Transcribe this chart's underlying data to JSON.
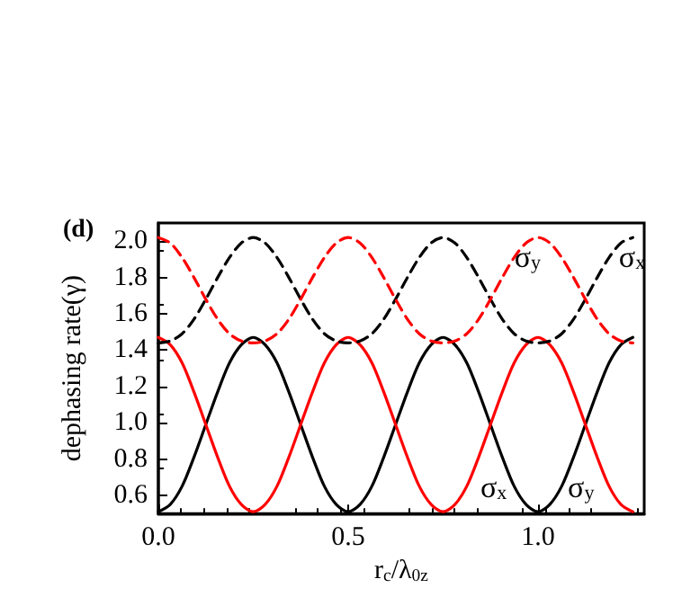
{
  "chart_data": {
    "type": "line",
    "title": "(d)",
    "xlabel": "r$_{c}$/λ$_{0z}$",
    "ylabel": "dephasing rate(γ)",
    "x": [
      0,
      0.03125,
      0.0625,
      0.09375,
      0.125,
      0.15625,
      0.1875,
      0.21875,
      0.25,
      0.28125,
      0.3125,
      0.34375,
      0.375,
      0.40625,
      0.4375,
      0.46875,
      0.5,
      0.53125,
      0.5625,
      0.59375,
      0.625,
      0.65625,
      0.6875,
      0.71875,
      0.75,
      0.78125,
      0.8125,
      0.84375,
      0.875,
      0.90625,
      0.9375,
      0.96875,
      1,
      1.03125,
      1.0625,
      1.09375,
      1.125,
      1.15625,
      1.1875,
      1.21875,
      1.25
    ],
    "series": [
      {
        "color": "#000000",
        "line_style": "solid",
        "values": [
          0.51,
          0.55,
          0.65,
          0.81,
          0.99,
          1.17,
          1.33,
          1.43,
          1.47,
          1.43,
          1.33,
          1.17,
          0.99,
          0.81,
          0.65,
          0.55,
          0.51,
          0.55,
          0.65,
          0.81,
          0.99,
          1.17,
          1.33,
          1.43,
          1.47,
          1.43,
          1.33,
          1.17,
          0.99,
          0.81,
          0.65,
          0.55,
          0.51,
          0.55,
          0.65,
          0.81,
          0.99,
          1.17,
          1.33,
          1.43,
          1.47
        ]
      },
      {
        "color": "#ff0000",
        "line_style": "solid",
        "values": [
          1.47,
          1.43,
          1.33,
          1.17,
          0.99,
          0.81,
          0.65,
          0.55,
          0.51,
          0.55,
          0.65,
          0.81,
          0.99,
          1.17,
          1.33,
          1.43,
          1.47,
          1.43,
          1.33,
          1.17,
          0.99,
          0.81,
          0.65,
          0.55,
          0.51,
          0.55,
          0.65,
          0.81,
          0.99,
          1.17,
          1.33,
          1.43,
          1.47,
          1.43,
          1.33,
          1.17,
          0.99,
          0.81,
          0.65,
          0.55,
          0.51
        ]
      },
      {
        "color": "#000000",
        "line_style": "dashed",
        "values": [
          1.44,
          1.45,
          1.49,
          1.57,
          1.68,
          1.8,
          1.91,
          1.99,
          2.02,
          1.99,
          1.91,
          1.8,
          1.68,
          1.57,
          1.49,
          1.45,
          1.44,
          1.45,
          1.49,
          1.57,
          1.68,
          1.8,
          1.91,
          1.99,
          2.02,
          1.99,
          1.91,
          1.8,
          1.68,
          1.57,
          1.49,
          1.45,
          1.44,
          1.45,
          1.49,
          1.57,
          1.68,
          1.8,
          1.91,
          1.99,
          2.02
        ]
      },
      {
        "color": "#ff0000",
        "line_style": "dashed",
        "values": [
          2.02,
          1.99,
          1.91,
          1.8,
          1.68,
          1.57,
          1.49,
          1.45,
          1.44,
          1.45,
          1.49,
          1.57,
          1.68,
          1.8,
          1.91,
          1.99,
          2.02,
          1.99,
          1.91,
          1.8,
          1.68,
          1.57,
          1.49,
          1.45,
          1.44,
          1.45,
          1.49,
          1.57,
          1.68,
          1.8,
          1.91,
          1.99,
          2.02,
          1.99,
          1.91,
          1.8,
          1.68,
          1.57,
          1.49,
          1.45,
          1.44
        ]
      }
    ],
    "annotations": [
      "σ$_{y}$",
      "σ$_{x}$",
      "σ$_{x}$",
      "σ$_{y}$"
    ],
    "xlim": [
      0,
      1.28
    ],
    "ylim": [
      0.5,
      2.1
    ],
    "xticks": [
      {
        "value": 0,
        "label": "0.0"
      },
      0.5,
      {
        "value": 1,
        "label": "1.0"
      }
    ],
    "yticks": [
      0.6,
      0.8,
      {
        "value": 1,
        "label": "1.0"
      },
      1.2,
      1.4,
      1.6,
      1.8,
      {
        "value": 2,
        "label": "2.0"
      }
    ],
    "grid": false,
    "marker": "none"
  }
}
